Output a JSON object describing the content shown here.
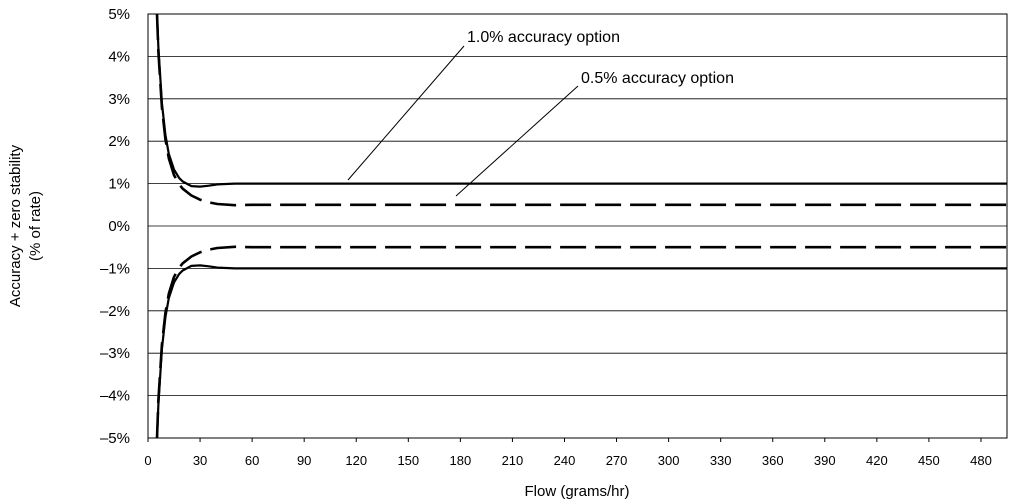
{
  "chart_data": {
    "type": "line",
    "title": "",
    "xlabel": "Flow (grams/hr)",
    "ylabel_line1": "Accuracy + zero stability",
    "ylabel_line2": "(% of rate)",
    "xlim": [
      0,
      495
    ],
    "ylim": [
      -5,
      5
    ],
    "x_ticks": [
      0,
      30,
      60,
      90,
      120,
      150,
      180,
      210,
      240,
      270,
      300,
      330,
      360,
      390,
      420,
      450,
      480
    ],
    "y_tick_values": [
      5,
      4,
      3,
      2,
      1,
      0,
      -1,
      -2,
      -3,
      -4,
      -5
    ],
    "y_tick_labels": [
      "5%",
      "4%",
      "3%",
      "2%",
      "1%",
      "0%",
      "–1%",
      "–2%",
      "–3%",
      "–4%",
      "–5%"
    ],
    "grid": "horizontal",
    "series": [
      {
        "name": "1.0% accuracy option",
        "style": "solid",
        "color": "#000000",
        "x": [
          5.2,
          6,
          8,
          10,
          12,
          15,
          18,
          20,
          25,
          30,
          35,
          40,
          50,
          60,
          100,
          200,
          300,
          400,
          495
        ],
        "y": [
          5,
          4.2,
          2.9,
          2.15,
          1.7,
          1.33,
          1.13,
          1.05,
          0.94,
          0.93,
          0.95,
          0.98,
          1.0,
          1.0,
          1.0,
          1.0,
          1.0,
          1.0,
          1.0
        ],
        "y_lower": [
          -5,
          -4.2,
          -2.9,
          -2.15,
          -1.7,
          -1.33,
          -1.13,
          -1.05,
          -0.94,
          -0.93,
          -0.95,
          -0.98,
          -1.0,
          -1.0,
          -1.0,
          -1.0,
          -1.0,
          -1.0,
          -1.0
        ]
      },
      {
        "name": "0.5% accuracy option",
        "style": "dashed",
        "color": "#000000",
        "x": [
          5.2,
          6,
          8,
          10,
          12,
          15,
          18,
          20,
          25,
          30,
          35,
          40,
          50,
          60,
          100,
          200,
          300,
          400,
          495
        ],
        "y": [
          5,
          4.1,
          2.8,
          2.05,
          1.6,
          1.2,
          0.98,
          0.88,
          0.72,
          0.62,
          0.56,
          0.52,
          0.49,
          0.5,
          0.5,
          0.5,
          0.5,
          0.5,
          0.5
        ],
        "y_lower": [
          -5,
          -4.1,
          -2.8,
          -2.05,
          -1.6,
          -1.2,
          -0.98,
          -0.88,
          -0.72,
          -0.62,
          -0.56,
          -0.52,
          -0.49,
          -0.5,
          -0.5,
          -0.5,
          -0.5,
          -0.5,
          -0.5
        ]
      }
    ],
    "annotations": [
      {
        "text": "1.0% accuracy option",
        "series": 0
      },
      {
        "text": "0.5% accuracy option",
        "series": 1
      }
    ]
  }
}
